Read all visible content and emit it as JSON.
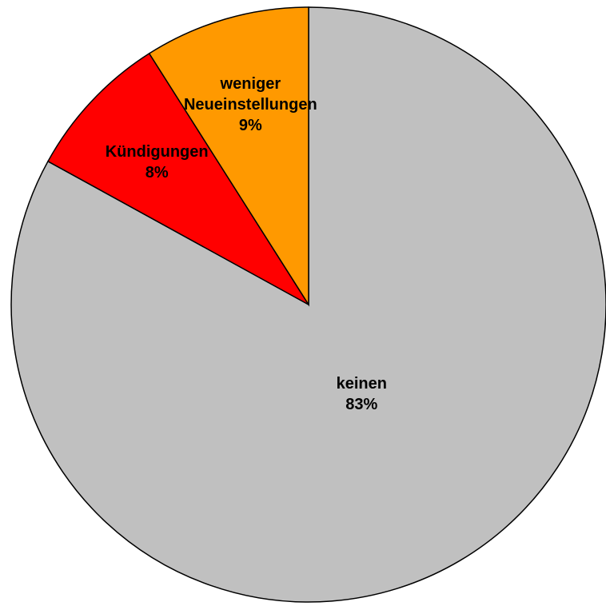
{
  "chart_data": {
    "type": "pie",
    "categories": [
      "keinen",
      "Kündigungen",
      "weniger Neueinstellungen"
    ],
    "values": [
      83,
      8,
      9
    ],
    "value_labels": [
      "83%",
      "8%",
      "9%"
    ],
    "colors": [
      "#c0c0c0",
      "#ff0000",
      "#ff9900"
    ]
  }
}
